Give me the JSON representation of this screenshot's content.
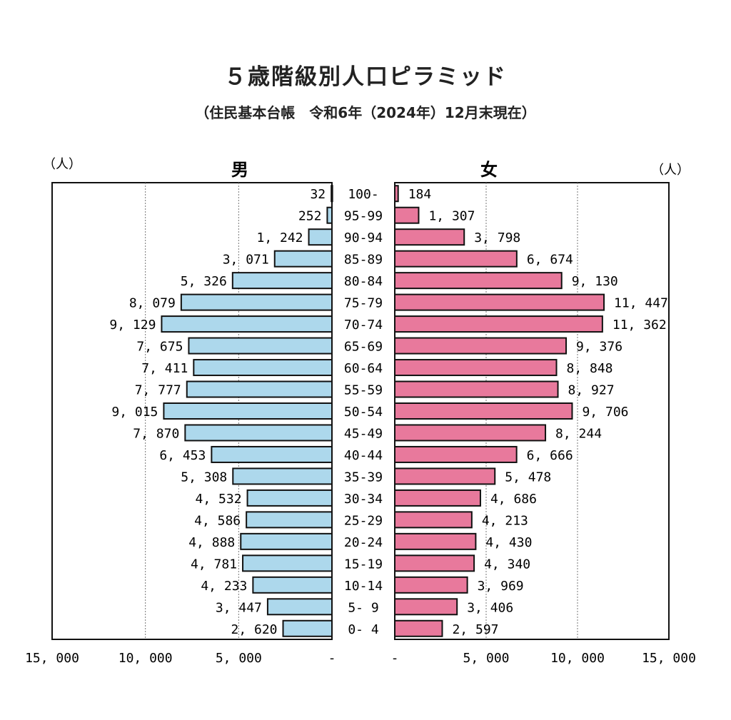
{
  "chart_data": {
    "type": "bar",
    "orientation": "horizontal-pyramid",
    "title": "５歳階級別人口ピラミッド",
    "subtitle": "（住民基本台帳　令和6年（2024年）12月末現在）",
    "unit_left": "（人）",
    "unit_right": "（人）",
    "categories": [
      "100-",
      "95-99",
      "90-94",
      "85-89",
      "80-84",
      "75-79",
      "70-74",
      "65-69",
      "60-64",
      "55-59",
      "50-54",
      "45-49",
      "40-44",
      "35-39",
      "30-34",
      "25-29",
      "20-24",
      "15-19",
      "10-14",
      "5- 9",
      "0- 4"
    ],
    "series": [
      {
        "name": "男",
        "side": "left",
        "color": "#add8ec",
        "values": [
          32,
          252,
          1242,
          3071,
          5326,
          8079,
          9129,
          7675,
          7411,
          7777,
          9015,
          7870,
          6453,
          5308,
          4532,
          4586,
          4888,
          4781,
          4233,
          3447,
          2620
        ],
        "labels": [
          "32",
          "252",
          "1, 242",
          "3, 071",
          "5, 326",
          "8, 079",
          "9, 129",
          "7, 675",
          "7, 411",
          "7, 777",
          "9, 015",
          "7, 870",
          "6, 453",
          "5, 308",
          "4, 532",
          "4, 586",
          "4, 888",
          "4, 781",
          "4, 233",
          "3, 447",
          "2, 620"
        ]
      },
      {
        "name": "女",
        "side": "right",
        "color": "#e8799c",
        "values": [
          184,
          1307,
          3798,
          6674,
          9130,
          11447,
          11362,
          9376,
          8848,
          8927,
          9706,
          8244,
          6666,
          5478,
          4686,
          4213,
          4430,
          4340,
          3969,
          3406,
          2597
        ],
        "labels": [
          "184",
          "1, 307",
          "3, 798",
          "6, 674",
          "9, 130",
          "11, 447",
          "11, 362",
          "9, 376",
          "8, 848",
          "8, 927",
          "9, 706",
          "8, 244",
          "6, 666",
          "5, 478",
          "4, 686",
          "4, 213",
          "4, 430",
          "4, 340",
          "3, 969",
          "3, 406",
          "2, 597"
        ]
      }
    ],
    "xlim": [
      0,
      15000
    ],
    "grid": true,
    "x_ticks_left": [
      "15, 000",
      "10, 000",
      "5, 000",
      "-"
    ],
    "x_ticks_right": [
      "-",
      "5, 000",
      "10, 000",
      "15, 000"
    ]
  }
}
